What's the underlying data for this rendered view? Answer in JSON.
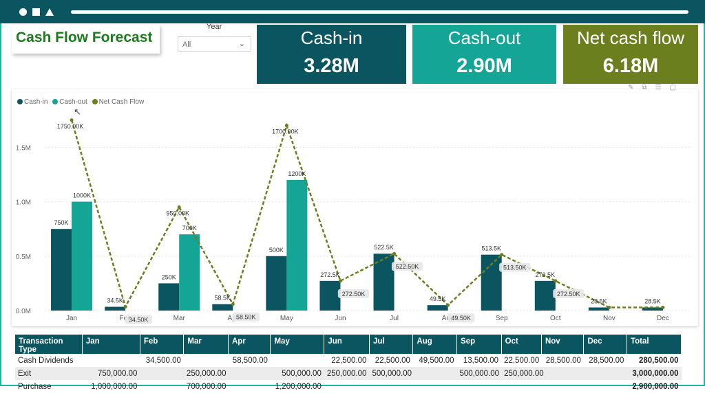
{
  "window": {
    "controls": [
      "circle",
      "square",
      "triangle"
    ]
  },
  "title": "Cash Flow Forecast",
  "filter": {
    "label": "Year",
    "value": "All"
  },
  "kpis": [
    {
      "label": "Cash-in",
      "value": "3.28M",
      "color": "#0b5560"
    },
    {
      "label": "Cash-out",
      "value": "2.90M",
      "color": "#14a596"
    },
    {
      "label": "Net cash flow",
      "value": "6.18M",
      "color": "#6b7f1e"
    }
  ],
  "legend": [
    {
      "name": "Cash-in",
      "color": "#0b5560"
    },
    {
      "name": "Cash-out",
      "color": "#14a596"
    },
    {
      "name": "Net Cash Flow",
      "color": "#6b7f1e"
    }
  ],
  "chart_data": {
    "type": "bar",
    "categories": [
      "Jan",
      "Feb",
      "Mar",
      "Apr",
      "May",
      "Jun",
      "Jul",
      "Aug",
      "Sep",
      "Oct",
      "Nov",
      "Dec"
    ],
    "y_ticks": [
      "0.0M",
      "0.5M",
      "1.0M",
      "1.5M"
    ],
    "ylim": [
      0,
      1800000
    ],
    "grid": true,
    "legend_position": "top-left",
    "series": [
      {
        "name": "Cash-in",
        "kind": "bar",
        "color": "#0b5560",
        "values": [
          750000,
          34500,
          250000,
          58500,
          500000,
          272500,
          522500,
          49500,
          513500,
          272500,
          28500,
          28500
        ],
        "labels": [
          "750K",
          "34.5K",
          "250K",
          "58.5K",
          "500K",
          "272.5K",
          "522.5K",
          "49.5K",
          "513.5K",
          "272.5K",
          "28.5K",
          "28.5K"
        ]
      },
      {
        "name": "Cash-out",
        "kind": "bar",
        "color": "#14a596",
        "values": [
          1000000,
          0,
          700000,
          0,
          1200000,
          0,
          0,
          0,
          0,
          0,
          0,
          0
        ],
        "labels": [
          "1000K",
          "",
          "700K",
          "",
          "1200K",
          "",
          "",
          "",
          "",
          "",
          "",
          ""
        ]
      },
      {
        "name": "Net Cash Flow",
        "kind": "line",
        "style": "dashed",
        "color": "#6b7f1e",
        "values": [
          1750000,
          34500,
          950000,
          58500,
          1700000,
          272500,
          522500,
          49500,
          513500,
          272500,
          28500,
          28500
        ],
        "labels": [
          "1750.00K",
          "34.50K",
          "950.00K",
          "58.50K",
          "1700.00K",
          "272.50K",
          "522.50K",
          "49.50K",
          "513.50K",
          "272.50K",
          "",
          ""
        ]
      }
    ]
  },
  "table": {
    "columns": [
      "Transaction Type",
      "Jan",
      "Feb",
      "Mar",
      "Apr",
      "May",
      "Jun",
      "Jul",
      "Aug",
      "Sep",
      "Oct",
      "Nov",
      "Dec",
      "Total"
    ],
    "rows": [
      [
        "Cash Dividends",
        "",
        "34,500.00",
        "",
        "58,500.00",
        "",
        "22,500.00",
        "22,500.00",
        "49,500.00",
        "13,500.00",
        "22,500.00",
        "28,500.00",
        "28,500.00",
        "280,500.00"
      ],
      [
        "Exit",
        "750,000.00",
        "",
        "250,000.00",
        "",
        "500,000.00",
        "250,000.00",
        "500,000.00",
        "",
        "500,000.00",
        "250,000.00",
        "",
        "",
        "3,000,000.00"
      ],
      [
        "Purchase",
        "1,000,000.00",
        "",
        "700,000.00",
        "",
        "1,200,000.00",
        "",
        "",
        "",
        "",
        "",
        "",
        "",
        "2,900,000.00"
      ]
    ]
  }
}
